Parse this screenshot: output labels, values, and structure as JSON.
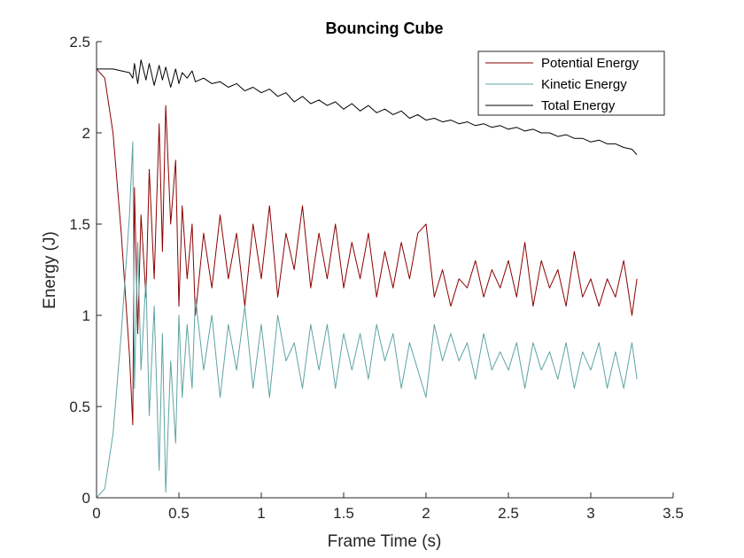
{
  "chart_data": {
    "type": "line",
    "title": "Bouncing Cube",
    "xlabel": "Frame Time (s)",
    "ylabel": "Energy (J)",
    "xlim": [
      0,
      3.5
    ],
    "ylim": [
      0,
      2.5
    ],
    "xticks": [
      0,
      0.5,
      1,
      1.5,
      2,
      2.5,
      3,
      3.5
    ],
    "xtick_labels": [
      "0",
      "0.5",
      "1",
      "1.5",
      "2",
      "2.5",
      "3",
      "3.5"
    ],
    "yticks": [
      0,
      0.5,
      1,
      1.5,
      2,
      2.5
    ],
    "ytick_labels": [
      "0",
      "0.5",
      "1",
      "1.5",
      "2",
      "2.5"
    ],
    "grid": false,
    "legend_position": "top-right",
    "series": [
      {
        "name": "Potential Energy",
        "color": "#8b0000",
        "x": [
          0,
          0.05,
          0.1,
          0.15,
          0.2,
          0.22,
          0.23,
          0.25,
          0.27,
          0.3,
          0.32,
          0.35,
          0.38,
          0.4,
          0.42,
          0.45,
          0.48,
          0.5,
          0.52,
          0.55,
          0.58,
          0.6,
          0.65,
          0.7,
          0.75,
          0.8,
          0.85,
          0.9,
          0.95,
          1.0,
          1.05,
          1.1,
          1.15,
          1.2,
          1.25,
          1.3,
          1.35,
          1.4,
          1.45,
          1.5,
          1.55,
          1.6,
          1.65,
          1.7,
          1.75,
          1.8,
          1.85,
          1.9,
          1.95,
          2.0,
          2.05,
          2.1,
          2.15,
          2.2,
          2.25,
          2.3,
          2.35,
          2.4,
          2.45,
          2.5,
          2.55,
          2.6,
          2.65,
          2.7,
          2.75,
          2.8,
          2.85,
          2.9,
          2.95,
          3.0,
          3.05,
          3.1,
          3.15,
          3.2,
          3.25,
          3.28
        ],
        "y": [
          2.35,
          2.3,
          2.0,
          1.45,
          0.78,
          0.4,
          1.7,
          0.9,
          1.55,
          1.1,
          1.8,
          1.2,
          2.05,
          1.35,
          2.15,
          1.5,
          1.85,
          1.05,
          1.6,
          1.2,
          1.5,
          1.0,
          1.45,
          1.15,
          1.55,
          1.2,
          1.45,
          1.05,
          1.5,
          1.2,
          1.6,
          1.1,
          1.45,
          1.25,
          1.6,
          1.15,
          1.45,
          1.2,
          1.5,
          1.15,
          1.4,
          1.2,
          1.45,
          1.1,
          1.35,
          1.15,
          1.4,
          1.2,
          1.45,
          1.5,
          1.1,
          1.25,
          1.05,
          1.2,
          1.15,
          1.3,
          1.1,
          1.25,
          1.15,
          1.3,
          1.1,
          1.4,
          1.05,
          1.3,
          1.15,
          1.25,
          1.05,
          1.35,
          1.1,
          1.2,
          1.05,
          1.2,
          1.1,
          1.3,
          1.0,
          1.2
        ]
      },
      {
        "name": "Kinetic Energy",
        "color": "#5fa3a3",
        "x": [
          0,
          0.05,
          0.1,
          0.15,
          0.2,
          0.22,
          0.23,
          0.25,
          0.27,
          0.3,
          0.32,
          0.35,
          0.38,
          0.4,
          0.42,
          0.45,
          0.48,
          0.5,
          0.52,
          0.55,
          0.58,
          0.6,
          0.65,
          0.7,
          0.75,
          0.8,
          0.85,
          0.9,
          0.95,
          1.0,
          1.05,
          1.1,
          1.15,
          1.2,
          1.25,
          1.3,
          1.35,
          1.4,
          1.45,
          1.5,
          1.55,
          1.6,
          1.65,
          1.7,
          1.75,
          1.8,
          1.85,
          1.9,
          1.95,
          2.0,
          2.05,
          2.1,
          2.15,
          2.2,
          2.25,
          2.3,
          2.35,
          2.4,
          2.45,
          2.5,
          2.55,
          2.6,
          2.65,
          2.7,
          2.75,
          2.8,
          2.85,
          2.9,
          2.95,
          3.0,
          3.05,
          3.1,
          3.15,
          3.2,
          3.25,
          3.28
        ],
        "y": [
          0.0,
          0.05,
          0.35,
          0.9,
          1.55,
          1.95,
          0.6,
          1.4,
          0.7,
          1.2,
          0.45,
          1.05,
          0.15,
          0.9,
          0.03,
          0.75,
          0.3,
          1.0,
          0.55,
          0.95,
          0.6,
          1.1,
          0.7,
          1.0,
          0.55,
          0.95,
          0.7,
          1.05,
          0.6,
          0.95,
          0.55,
          1.0,
          0.75,
          0.85,
          0.6,
          0.95,
          0.7,
          0.95,
          0.6,
          0.9,
          0.7,
          0.9,
          0.65,
          0.95,
          0.75,
          0.9,
          0.6,
          0.85,
          0.7,
          0.55,
          0.95,
          0.75,
          0.9,
          0.75,
          0.85,
          0.65,
          0.9,
          0.7,
          0.8,
          0.7,
          0.85,
          0.6,
          0.85,
          0.7,
          0.8,
          0.65,
          0.85,
          0.6,
          0.8,
          0.7,
          0.85,
          0.6,
          0.8,
          0.6,
          0.85,
          0.65
        ]
      },
      {
        "name": "Total Energy",
        "color": "#000000",
        "x": [
          0,
          0.05,
          0.1,
          0.15,
          0.2,
          0.22,
          0.23,
          0.25,
          0.27,
          0.3,
          0.32,
          0.35,
          0.38,
          0.4,
          0.42,
          0.45,
          0.48,
          0.5,
          0.52,
          0.55,
          0.58,
          0.6,
          0.65,
          0.7,
          0.75,
          0.8,
          0.85,
          0.9,
          0.95,
          1.0,
          1.05,
          1.1,
          1.15,
          1.2,
          1.25,
          1.3,
          1.35,
          1.4,
          1.45,
          1.5,
          1.55,
          1.6,
          1.65,
          1.7,
          1.75,
          1.8,
          1.85,
          1.9,
          1.95,
          2.0,
          2.05,
          2.1,
          2.15,
          2.2,
          2.25,
          2.3,
          2.35,
          2.4,
          2.45,
          2.5,
          2.55,
          2.6,
          2.65,
          2.7,
          2.75,
          2.8,
          2.85,
          2.9,
          2.95,
          3.0,
          3.05,
          3.1,
          3.15,
          3.2,
          3.25,
          3.28
        ],
        "y": [
          2.35,
          2.35,
          2.35,
          2.34,
          2.33,
          2.3,
          2.38,
          2.27,
          2.4,
          2.29,
          2.38,
          2.26,
          2.37,
          2.29,
          2.36,
          2.25,
          2.35,
          2.27,
          2.33,
          2.3,
          2.34,
          2.28,
          2.3,
          2.27,
          2.28,
          2.25,
          2.27,
          2.23,
          2.25,
          2.22,
          2.24,
          2.2,
          2.22,
          2.17,
          2.2,
          2.16,
          2.18,
          2.15,
          2.17,
          2.13,
          2.16,
          2.12,
          2.15,
          2.11,
          2.13,
          2.1,
          2.12,
          2.08,
          2.1,
          2.07,
          2.08,
          2.06,
          2.07,
          2.05,
          2.06,
          2.04,
          2.05,
          2.03,
          2.04,
          2.02,
          2.03,
          2.01,
          2.02,
          2.0,
          2.0,
          1.98,
          1.99,
          1.97,
          1.97,
          1.95,
          1.96,
          1.94,
          1.94,
          1.92,
          1.91,
          1.88
        ]
      }
    ]
  }
}
